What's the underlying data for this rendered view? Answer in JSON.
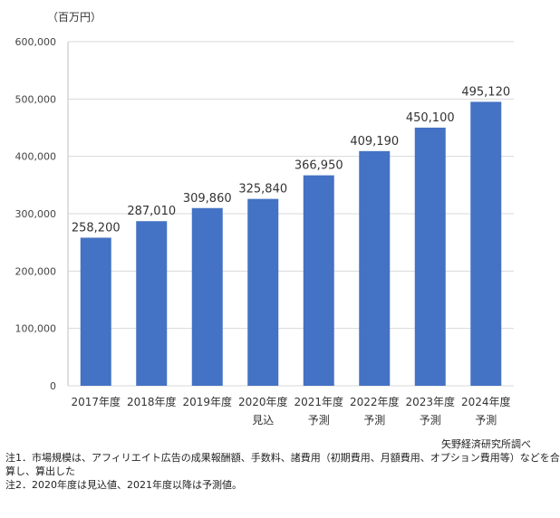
{
  "chart_data": {
    "type": "bar",
    "unit_label": "（百万円）",
    "categories": [
      "2017年度",
      "2018年度",
      "2019年度",
      "2020年度",
      "2021年度",
      "2022年度",
      "2023年度",
      "2024年度"
    ],
    "sublabels": [
      "",
      "",
      "",
      "見込",
      "予測",
      "予測",
      "予測",
      "予測"
    ],
    "values": [
      258200,
      287010,
      309860,
      325840,
      366950,
      409190,
      450100,
      495120
    ],
    "value_labels": [
      "258,200",
      "287,010",
      "309,860",
      "325,840",
      "366,950",
      "409,190",
      "450,100",
      "495,120"
    ],
    "yticks": [
      0,
      100000,
      200000,
      300000,
      400000,
      500000,
      600000
    ],
    "ytick_labels": [
      "0",
      "100,000",
      "200,000",
      "300,000",
      "400,000",
      "500,000",
      "600,000"
    ],
    "ylim": [
      0,
      600000
    ],
    "grid": true,
    "bar_color": "#4472C4"
  },
  "source": "矢野経済研究所調べ",
  "notes": [
    "注1．市場規模は、アフィリエイト広告の成果報酬額、手数料、諸費用（初期費用、月額費用、オプション費用等）などを合",
    "算し、算出した",
    "注2．2020年度は見込値、2021年度以降は予測値。"
  ]
}
